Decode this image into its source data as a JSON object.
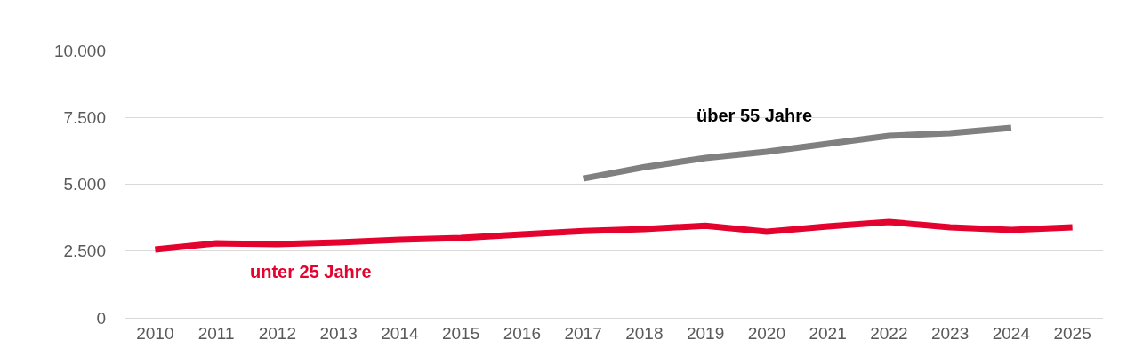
{
  "chart_data": {
    "type": "line",
    "categories": [
      "2010",
      "2011",
      "2012",
      "2013",
      "2014",
      "2015",
      "2016",
      "2017",
      "2018",
      "2019",
      "2020",
      "2021",
      "2022",
      "2023",
      "2024",
      "2025"
    ],
    "series": [
      {
        "name": "unter 25 Jahre",
        "color": "#e4032e",
        "values": [
          2560,
          2790,
          2760,
          2820,
          2920,
          2990,
          3120,
          3250,
          3320,
          3450,
          3220,
          3420,
          3590,
          3390,
          3290,
          3390
        ]
      },
      {
        "name": "über 55 Jahre",
        "color": "#808080",
        "values": [
          null,
          null,
          null,
          null,
          null,
          null,
          null,
          5210,
          5640,
          5980,
          6210,
          6510,
          6810,
          6910,
          7110,
          null
        ]
      }
    ],
    "ylim": [
      0,
      10000
    ],
    "yticks": [
      0,
      {
        "value": 2500,
        "label": "2.500"
      },
      {
        "value": 5000,
        "label": "5.000"
      },
      {
        "value": 7500,
        "label": "7.500"
      },
      {
        "value": 10000,
        "label": "10.000"
      }
    ],
    "grid": "y",
    "legend": false,
    "marker": "none",
    "line_style": "solid"
  }
}
